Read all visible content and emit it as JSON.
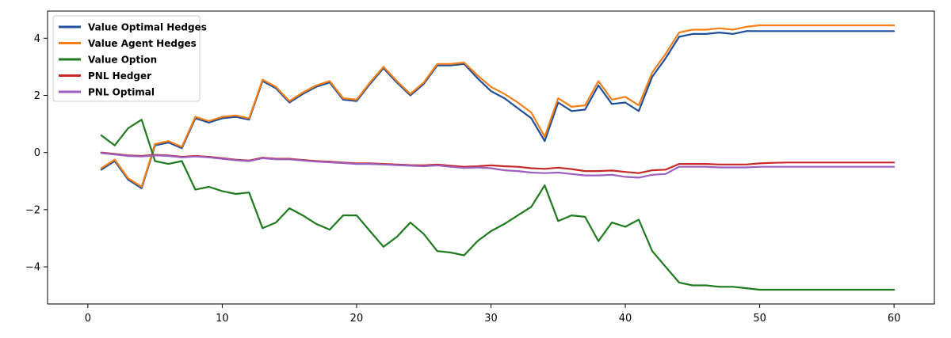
{
  "chart_data": {
    "type": "line",
    "title": "",
    "xlabel": "",
    "ylabel": "",
    "xlim": [
      -3,
      63
    ],
    "ylim": [
      -5.3,
      4.95
    ],
    "grid": false,
    "legend_placement": "top-left",
    "x_ticks": [
      0,
      10,
      20,
      30,
      40,
      50,
      60
    ],
    "y_ticks": [
      -4,
      -2,
      0,
      2,
      4
    ],
    "x_tick_labels": [
      "0",
      "10",
      "20",
      "30",
      "40",
      "50",
      "60"
    ],
    "y_tick_labels": [
      "−4",
      "−2",
      "0",
      "2",
      "4"
    ],
    "series": [
      {
        "name": "Value Optimal Hedges",
        "color": "#1f4e9a",
        "x": [
          1,
          2,
          3,
          4,
          5,
          6,
          7,
          8,
          9,
          10,
          11,
          12,
          13,
          14,
          15,
          16,
          17,
          18,
          19,
          20,
          21,
          22,
          23,
          24,
          25,
          26,
          27,
          28,
          29,
          30,
          31,
          32,
          33,
          34,
          35,
          36,
          37,
          38,
          39,
          40,
          41,
          42,
          43,
          44,
          45,
          46,
          47,
          48,
          49,
          50,
          51,
          52,
          53,
          54,
          55,
          56,
          57,
          58,
          59,
          60
        ],
        "values": [
          -0.6,
          -0.3,
          -0.95,
          -1.25,
          0.25,
          0.35,
          0.15,
          1.2,
          1.05,
          1.2,
          1.25,
          1.15,
          2.5,
          2.25,
          1.75,
          2.05,
          2.3,
          2.45,
          1.85,
          1.8,
          2.4,
          2.95,
          2.45,
          2.0,
          2.4,
          3.05,
          3.05,
          3.1,
          2.6,
          2.15,
          1.9,
          1.55,
          1.2,
          0.4,
          1.75,
          1.45,
          1.5,
          2.35,
          1.7,
          1.75,
          1.45,
          2.65,
          3.3,
          4.05,
          4.15,
          4.15,
          4.2,
          4.15,
          4.25,
          4.25,
          4.25,
          4.25,
          4.25,
          4.25,
          4.25,
          4.25,
          4.25,
          4.25,
          4.25,
          4.25
        ]
      },
      {
        "name": "Value Agent Hedges",
        "color": "#f57f17",
        "x": [
          1,
          2,
          3,
          4,
          5,
          6,
          7,
          8,
          9,
          10,
          11,
          12,
          13,
          14,
          15,
          16,
          17,
          18,
          19,
          20,
          21,
          22,
          23,
          24,
          25,
          26,
          27,
          28,
          29,
          30,
          31,
          32,
          33,
          34,
          35,
          36,
          37,
          38,
          39,
          40,
          41,
          42,
          43,
          44,
          45,
          46,
          47,
          48,
          49,
          50,
          51,
          52,
          53,
          54,
          55,
          56,
          57,
          58,
          59,
          60
        ],
        "values": [
          -0.55,
          -0.25,
          -0.9,
          -1.2,
          0.3,
          0.4,
          0.2,
          1.25,
          1.1,
          1.25,
          1.3,
          1.2,
          2.55,
          2.3,
          1.8,
          2.1,
          2.35,
          2.5,
          1.9,
          1.85,
          2.45,
          3.0,
          2.5,
          2.05,
          2.45,
          3.1,
          3.1,
          3.15,
          2.7,
          2.3,
          2.05,
          1.75,
          1.4,
          0.55,
          1.9,
          1.6,
          1.65,
          2.5,
          1.85,
          1.95,
          1.65,
          2.8,
          3.45,
          4.2,
          4.3,
          4.3,
          4.35,
          4.3,
          4.4,
          4.45,
          4.45,
          4.45,
          4.45,
          4.45,
          4.45,
          4.45,
          4.45,
          4.45,
          4.45,
          4.45
        ]
      },
      {
        "name": "Value Option",
        "color": "#1f7a1f",
        "x": [
          1,
          2,
          3,
          4,
          5,
          6,
          7,
          8,
          9,
          10,
          11,
          12,
          13,
          14,
          15,
          16,
          17,
          18,
          19,
          20,
          21,
          22,
          23,
          24,
          25,
          26,
          27,
          28,
          29,
          30,
          31,
          32,
          33,
          34,
          35,
          36,
          37,
          38,
          39,
          40,
          41,
          42,
          43,
          44,
          45,
          46,
          47,
          48,
          49,
          50,
          51,
          52,
          53,
          54,
          55,
          56,
          57,
          58,
          59,
          60
        ],
        "values": [
          0.6,
          0.25,
          0.85,
          1.15,
          -0.3,
          -0.4,
          -0.3,
          -1.3,
          -1.2,
          -1.35,
          -1.45,
          -1.4,
          -2.65,
          -2.45,
          -1.95,
          -2.2,
          -2.5,
          -2.7,
          -2.2,
          -2.2,
          -2.75,
          -3.3,
          -2.95,
          -2.45,
          -2.85,
          -3.45,
          -3.5,
          -3.6,
          -3.1,
          -2.75,
          -2.5,
          -2.2,
          -1.9,
          -1.15,
          -2.4,
          -2.2,
          -2.25,
          -3.1,
          -2.45,
          -2.6,
          -2.35,
          -3.45,
          -4.0,
          -4.55,
          -4.65,
          -4.65,
          -4.7,
          -4.7,
          -4.75,
          -4.8,
          -4.8,
          -4.8,
          -4.8,
          -4.8,
          -4.8,
          -4.8,
          -4.8,
          -4.8,
          -4.8,
          -4.8
        ]
      },
      {
        "name": "PNL Hedger",
        "color": "#c62828",
        "x": [
          1,
          2,
          3,
          4,
          5,
          6,
          7,
          8,
          9,
          10,
          11,
          12,
          13,
          14,
          15,
          16,
          17,
          18,
          19,
          20,
          21,
          22,
          23,
          24,
          25,
          26,
          27,
          28,
          29,
          30,
          31,
          32,
          33,
          34,
          35,
          36,
          37,
          38,
          39,
          40,
          41,
          42,
          43,
          44,
          45,
          46,
          47,
          48,
          49,
          50,
          51,
          52,
          53,
          54,
          55,
          56,
          57,
          58,
          59,
          60
        ],
        "values": [
          0.0,
          -0.05,
          -0.1,
          -0.12,
          -0.08,
          -0.1,
          -0.15,
          -0.12,
          -0.15,
          -0.2,
          -0.25,
          -0.28,
          -0.18,
          -0.22,
          -0.22,
          -0.26,
          -0.3,
          -0.32,
          -0.35,
          -0.38,
          -0.38,
          -0.4,
          -0.42,
          -0.44,
          -0.45,
          -0.42,
          -0.46,
          -0.5,
          -0.48,
          -0.45,
          -0.48,
          -0.5,
          -0.55,
          -0.57,
          -0.53,
          -0.58,
          -0.65,
          -0.65,
          -0.63,
          -0.68,
          -0.72,
          -0.62,
          -0.6,
          -0.4,
          -0.4,
          -0.4,
          -0.42,
          -0.42,
          -0.42,
          -0.38,
          -0.36,
          -0.35,
          -0.35,
          -0.35,
          -0.35,
          -0.35,
          -0.35,
          -0.35,
          -0.35,
          -0.35
        ]
      },
      {
        "name": "PNL Optimal",
        "color": "#9a5fc0",
        "x": [
          1,
          2,
          3,
          4,
          5,
          6,
          7,
          8,
          9,
          10,
          11,
          12,
          13,
          14,
          15,
          16,
          17,
          18,
          19,
          20,
          21,
          22,
          23,
          24,
          25,
          26,
          27,
          28,
          29,
          30,
          31,
          32,
          33,
          34,
          35,
          36,
          37,
          38,
          39,
          40,
          41,
          42,
          43,
          44,
          45,
          46,
          47,
          48,
          49,
          50,
          51,
          52,
          53,
          54,
          55,
          56,
          57,
          58,
          59,
          60
        ],
        "values": [
          -0.02,
          -0.07,
          -0.12,
          -0.14,
          -0.1,
          -0.12,
          -0.17,
          -0.14,
          -0.17,
          -0.22,
          -0.27,
          -0.3,
          -0.2,
          -0.24,
          -0.24,
          -0.28,
          -0.32,
          -0.34,
          -0.37,
          -0.4,
          -0.4,
          -0.42,
          -0.44,
          -0.46,
          -0.48,
          -0.45,
          -0.5,
          -0.54,
          -0.52,
          -0.55,
          -0.62,
          -0.65,
          -0.7,
          -0.72,
          -0.7,
          -0.75,
          -0.8,
          -0.8,
          -0.78,
          -0.85,
          -0.88,
          -0.78,
          -0.75,
          -0.5,
          -0.5,
          -0.5,
          -0.52,
          -0.52,
          -0.52,
          -0.5,
          -0.5,
          -0.5,
          -0.5,
          -0.5,
          -0.5,
          -0.5,
          -0.5,
          -0.5,
          -0.5,
          -0.5
        ]
      }
    ]
  }
}
